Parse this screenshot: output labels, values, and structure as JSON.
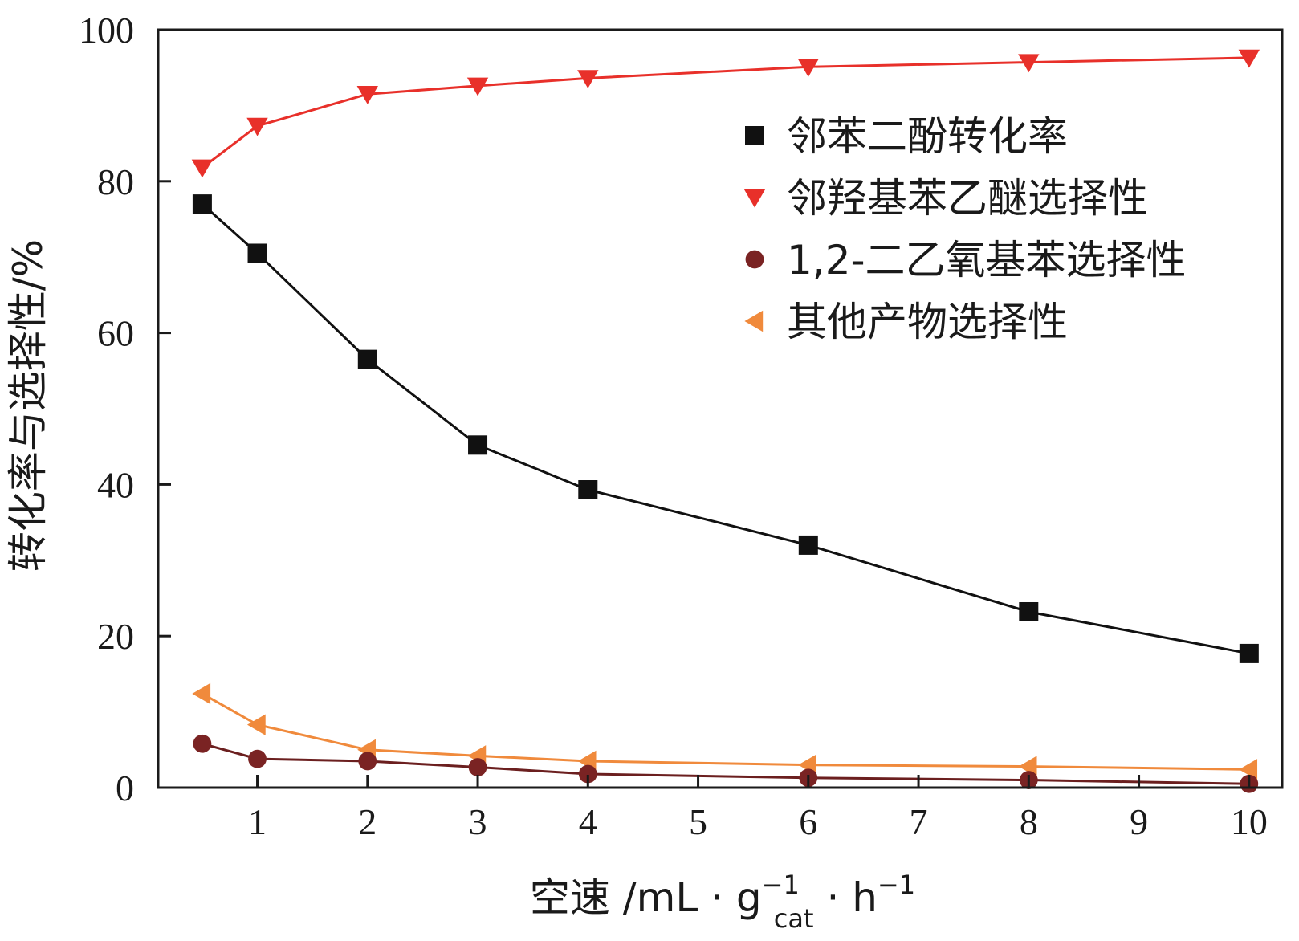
{
  "chart_data": {
    "type": "line",
    "xlabel": {
      "prefix": "空速 /mL · g",
      "g_sup": "−1",
      "g_sub": "cat",
      "mid": " · h",
      "h_sup": "−1"
    },
    "ylabel": "转化率与选择性/%",
    "xlim": [
      0.1,
      10.3
    ],
    "ylim": [
      0,
      100
    ],
    "xticks": [
      1,
      2,
      3,
      4,
      5,
      6,
      7,
      8,
      9,
      10
    ],
    "yticks": [
      0,
      20,
      40,
      60,
      80,
      100
    ],
    "grid": false,
    "legend_position": "top-right",
    "series": [
      {
        "name": "邻苯二酚转化率",
        "marker": "square",
        "color": "#111111",
        "line_color": "#111111",
        "x": [
          0.5,
          1,
          2,
          3,
          4,
          6,
          8,
          10
        ],
        "y": [
          77,
          70.5,
          56.5,
          45.2,
          39.3,
          32,
          23.2,
          17.7
        ]
      },
      {
        "name": "邻羟基苯乙醚选择性",
        "marker": "triangle-down",
        "color": "#e8302a",
        "line_color": "#e8302a",
        "x": [
          0.5,
          1,
          2,
          3,
          4,
          6,
          8,
          10
        ],
        "y": [
          81.8,
          87.3,
          91.5,
          92.6,
          93.6,
          95.1,
          95.7,
          96.3
        ]
      },
      {
        "name": "1,2-二乙氧基苯选择性",
        "marker": "circle",
        "color": "#7a2323",
        "line_color": "#6b1f1f",
        "x": [
          0.5,
          1,
          2,
          3,
          4,
          6,
          8,
          10
        ],
        "y": [
          5.8,
          3.8,
          3.5,
          2.7,
          1.8,
          1.3,
          1,
          0.5
        ]
      },
      {
        "name": "其他产物选择性",
        "marker": "triangle-left",
        "color": "#f08a3c",
        "line_color": "#f08a3c",
        "x": [
          0.5,
          1,
          2,
          3,
          4,
          6,
          8,
          10
        ],
        "y": [
          12.4,
          8.3,
          5,
          4.2,
          3.5,
          3,
          2.8,
          2.4
        ]
      }
    ]
  }
}
